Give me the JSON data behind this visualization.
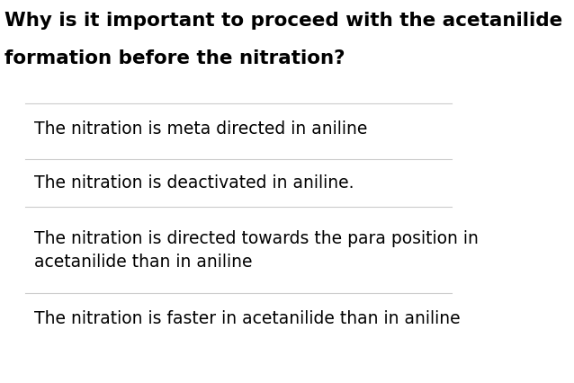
{
  "title_line1": "Why is it important to proceed with the acetanilide",
  "title_line2": "formation before the nitration?",
  "options": [
    "The nitration is meta directed in aniline",
    "The nitration is deactivated in aniline.",
    "The nitration is directed towards the para position in\nacetanilide than in aniline",
    "The nitration is faster in acetanilide than in aniline"
  ],
  "bg_color": "#ffffff",
  "title_color": "#000000",
  "option_color": "#000000",
  "line_color": "#cccccc",
  "title_fontsize": 15.5,
  "option_fontsize": 13.5,
  "fig_width": 6.38,
  "fig_height": 4.26
}
